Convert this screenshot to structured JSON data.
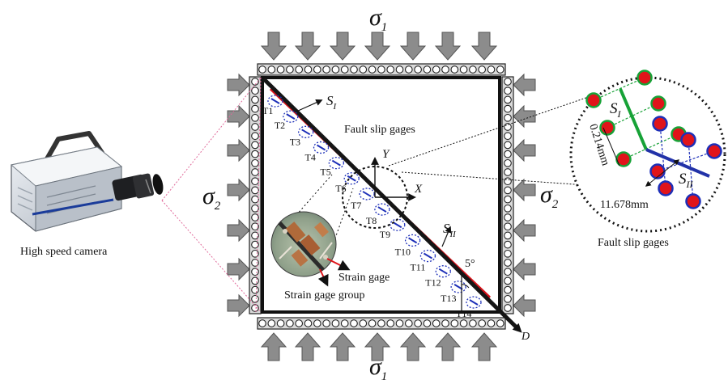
{
  "loads": {
    "sigma1_top": {
      "symbol": "σ",
      "subscript": "1"
    },
    "sigma1_bottom": {
      "symbol": "σ",
      "subscript": "1"
    },
    "sigma2_left": {
      "symbol": "σ",
      "subscript": "2"
    },
    "sigma2_right": {
      "symbol": "σ",
      "subscript": "2"
    }
  },
  "camera": {
    "label": "High speed camera"
  },
  "fault": {
    "s1": {
      "symbol": "S",
      "subscript": "I"
    },
    "s2": {
      "symbol": "S",
      "subscript": "II"
    },
    "d_label": "D",
    "angle_label": "5°",
    "fault_slip_label": "Fault slip gages",
    "axis_x": "X",
    "axis_y": "Y",
    "gages": [
      "T1",
      "T2",
      "T3",
      "T4",
      "T5",
      "T6",
      "T7",
      "T8",
      "T9",
      "T10",
      "T11",
      "T12",
      "T13",
      "T14"
    ]
  },
  "inset": {
    "strain_gage_label": "Strain gage",
    "strain_gage_group_label": "Strain gage group"
  },
  "zoom": {
    "s1": {
      "symbol": "S",
      "subscript": "I"
    },
    "s2": {
      "symbol": "S",
      "subscript": "II"
    },
    "dim1": "0.214mm",
    "dim2": "11.678mm",
    "caption": "Fault slip gages"
  },
  "colors": {
    "fault_red": "#d8121a",
    "fault_black": "#151515",
    "gage_blue": "#1d2fb8",
    "gage_red": "#e0141a",
    "gage_green": "#17a237",
    "arrow_gray": "#8c8c8c"
  }
}
